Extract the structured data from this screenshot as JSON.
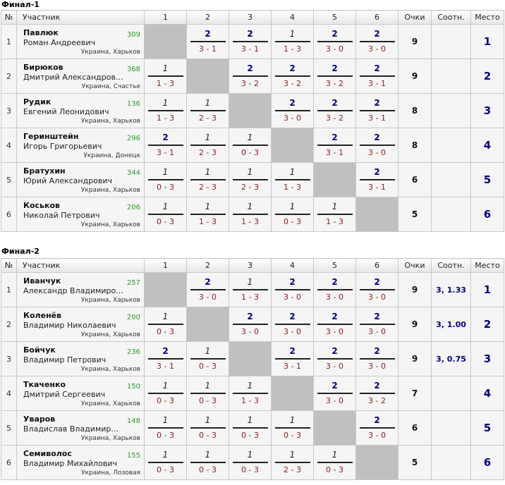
{
  "headers": {
    "num": "№",
    "player": "Участник",
    "games": [
      "1",
      "2",
      "3",
      "4",
      "5",
      "6"
    ],
    "points": "Очки",
    "ratio": "Соотн.",
    "place": "Место"
  },
  "finals": [
    {
      "title": "Финал-1",
      "rows": [
        {
          "num": "1",
          "name": "Павлюк",
          "full": "Роман Андреевич",
          "rating": "309",
          "city": "Украина, Харьков",
          "games": [
            null,
            {
              "p": "2",
              "s": "3 - 1"
            },
            {
              "p": "2",
              "s": "3 - 1"
            },
            {
              "p": "1",
              "s": "1 - 3"
            },
            {
              "p": "2",
              "s": "3 - 0"
            },
            {
              "p": "2",
              "s": "3 - 0"
            }
          ],
          "points": "9",
          "ratio": "",
          "place": "1"
        },
        {
          "num": "2",
          "name": "Бирюков",
          "full": "Дмитрий Александров...",
          "rating": "368",
          "city": "Украина, Счастье",
          "games": [
            {
              "p": "1",
              "s": "1 - 3"
            },
            null,
            {
              "p": "2",
              "s": "3 - 2"
            },
            {
              "p": "2",
              "s": "3 - 2"
            },
            {
              "p": "2",
              "s": "3 - 2"
            },
            {
              "p": "2",
              "s": "3 - 1"
            }
          ],
          "points": "9",
          "ratio": "",
          "place": "2"
        },
        {
          "num": "3",
          "name": "Рудик",
          "full": "Евгений Леонидович",
          "rating": "136",
          "city": "Украина, Харьков",
          "games": [
            {
              "p": "1",
              "s": "1 - 3"
            },
            {
              "p": "1",
              "s": "2 - 3"
            },
            null,
            {
              "p": "2",
              "s": "3 - 0"
            },
            {
              "p": "2",
              "s": "3 - 2"
            },
            {
              "p": "2",
              "s": "3 - 1"
            }
          ],
          "points": "8",
          "ratio": "",
          "place": "3"
        },
        {
          "num": "4",
          "name": "Геринштейн",
          "full": "Игорь Григорьевич",
          "rating": "296",
          "city": "Украина, Донецк",
          "games": [
            {
              "p": "2",
              "s": "3 - 1"
            },
            {
              "p": "1",
              "s": "2 - 3"
            },
            {
              "p": "1",
              "s": "0 - 3"
            },
            null,
            {
              "p": "2",
              "s": "3 - 1"
            },
            {
              "p": "2",
              "s": "3 - 0"
            }
          ],
          "points": "8",
          "ratio": "",
          "place": "4"
        },
        {
          "num": "5",
          "name": "Братухин",
          "full": "Юрий Александрович",
          "rating": "344",
          "city": "Украина, Харьков",
          "games": [
            {
              "p": "1",
              "s": "0 - 3"
            },
            {
              "p": "1",
              "s": "2 - 3"
            },
            {
              "p": "1",
              "s": "2 - 3"
            },
            {
              "p": "1",
              "s": "1 - 3"
            },
            null,
            {
              "p": "2",
              "s": "3 - 1"
            }
          ],
          "points": "6",
          "ratio": "",
          "place": "5"
        },
        {
          "num": "6",
          "name": "Коськов",
          "full": "Николай Петрович",
          "rating": "206",
          "city": "Украина, Харьков",
          "games": [
            {
              "p": "1",
              "s": "0 - 3"
            },
            {
              "p": "1",
              "s": "1 - 3"
            },
            {
              "p": "1",
              "s": "1 - 3"
            },
            {
              "p": "1",
              "s": "0 - 3"
            },
            {
              "p": "1",
              "s": "1 - 3"
            },
            null
          ],
          "points": "5",
          "ratio": "",
          "place": "6"
        }
      ]
    },
    {
      "title": "Финал-2",
      "rows": [
        {
          "num": "1",
          "name": "Иванчук",
          "full": "Александр Владимиро...",
          "rating": "257",
          "city": "Украина, Харьков",
          "games": [
            null,
            {
              "p": "2",
              "s": "3 - 0"
            },
            {
              "p": "1",
              "s": "1 - 3"
            },
            {
              "p": "2",
              "s": "3 - 0"
            },
            {
              "p": "2",
              "s": "3 - 0"
            },
            {
              "p": "2",
              "s": "3 - 0"
            }
          ],
          "points": "9",
          "ratio": "3, 1.33",
          "place": "1"
        },
        {
          "num": "2",
          "name": "Коленёв",
          "full": "Владимир Николаевич",
          "rating": "200",
          "city": "Украина, Харьков",
          "games": [
            {
              "p": "1",
              "s": "0 - 3"
            },
            null,
            {
              "p": "2",
              "s": "3 - 0"
            },
            {
              "p": "2",
              "s": "3 - 0"
            },
            {
              "p": "2",
              "s": "3 - 0"
            },
            {
              "p": "2",
              "s": "3 - 0"
            }
          ],
          "points": "9",
          "ratio": "3, 1.00",
          "place": "2"
        },
        {
          "num": "3",
          "name": "Бойчук",
          "full": "Владимир Петрович",
          "rating": "236",
          "city": "Украина, Харьков",
          "games": [
            {
              "p": "2",
              "s": "3 - 1"
            },
            {
              "p": "1",
              "s": "0 - 3"
            },
            null,
            {
              "p": "2",
              "s": "3 - 1"
            },
            {
              "p": "2",
              "s": "3 - 0"
            },
            {
              "p": "2",
              "s": "3 - 0"
            }
          ],
          "points": "9",
          "ratio": "3, 0.75",
          "place": "3"
        },
        {
          "num": "4",
          "name": "Ткаченко",
          "full": "Дмитрий Сергеевич",
          "rating": "150",
          "city": "Украина, Харьков",
          "games": [
            {
              "p": "1",
              "s": "0 - 3"
            },
            {
              "p": "1",
              "s": "0 - 3"
            },
            {
              "p": "1",
              "s": "1 - 3"
            },
            null,
            {
              "p": "2",
              "s": "3 - 0"
            },
            {
              "p": "2",
              "s": "3 - 2"
            }
          ],
          "points": "7",
          "ratio": "",
          "place": "4"
        },
        {
          "num": "5",
          "name": "Уваров",
          "full": "Владислав Владимир...",
          "rating": "148",
          "city": "Украина, Харьков",
          "games": [
            {
              "p": "1",
              "s": "0 - 3"
            },
            {
              "p": "1",
              "s": "0 - 3"
            },
            {
              "p": "1",
              "s": "0 - 3"
            },
            {
              "p": "1",
              "s": "0 - 3"
            },
            null,
            {
              "p": "2",
              "s": "3 - 0"
            }
          ],
          "points": "6",
          "ratio": "",
          "place": "5"
        },
        {
          "num": "6",
          "name": "Семиволос",
          "full": "Владимир Михайлович",
          "rating": "155",
          "city": "Украина, Лозовая",
          "games": [
            {
              "p": "1",
              "s": "0 - 3"
            },
            {
              "p": "1",
              "s": "0 - 3"
            },
            {
              "p": "1",
              "s": "0 - 3"
            },
            {
              "p": "1",
              "s": "2 - 3"
            },
            {
              "p": "1",
              "s": "0 - 3"
            },
            null
          ],
          "points": "5",
          "ratio": "",
          "place": "6"
        }
      ]
    }
  ]
}
